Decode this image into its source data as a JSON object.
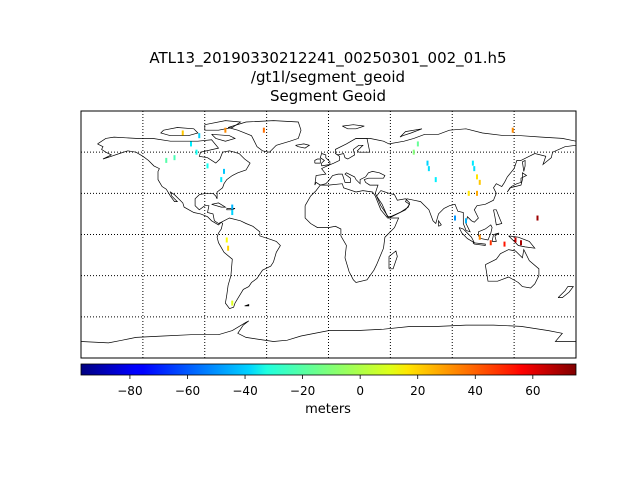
{
  "title_lines": [
    "ATL13_20190330212241_00250301_002_01.h5",
    "/gt1l/segment_geoid",
    "Segment Geoid"
  ],
  "map": {
    "projection": "equirectangular",
    "lon_range": [
      -180,
      180
    ],
    "lat_range": [
      -90,
      90
    ],
    "meridians": [
      -135,
      -90,
      -45,
      0,
      45,
      90,
      135
    ],
    "parallels": [
      -60,
      -30,
      0,
      30,
      60
    ],
    "graticule_style": "dotted",
    "coastline_color": "#000000"
  },
  "colorbar": {
    "colormap": "jet",
    "vmin": -97,
    "vmax": 75,
    "ticks": [
      -80,
      -60,
      -40,
      -20,
      0,
      20,
      40,
      60
    ],
    "tick_labels": [
      "−80",
      "−60",
      "−40",
      "−20",
      "0",
      "20",
      "40",
      "60"
    ],
    "label": "meters"
  },
  "chart_data": {
    "type": "scatter",
    "title": "ATL13_20190330212241_00250301_002_01.h5\n/gt1l/segment_geoid\nSegment Geoid",
    "colorbar_label": "meters",
    "clim": [
      -97,
      75
    ],
    "points": [
      {
        "lon": -106,
        "lat": 74,
        "value": 20
      },
      {
        "lon": -94,
        "lat": 72,
        "value": -40
      },
      {
        "lon": -100,
        "lat": 66,
        "value": -35
      },
      {
        "lon": -96,
        "lat": 60,
        "value": -30
      },
      {
        "lon": -112,
        "lat": 56,
        "value": -20
      },
      {
        "lon": -118,
        "lat": 54,
        "value": -18
      },
      {
        "lon": -88,
        "lat": 50,
        "value": -30
      },
      {
        "lon": -75,
        "lat": 76,
        "value": 30
      },
      {
        "lon": -76,
        "lat": 46,
        "value": -42
      },
      {
        "lon": -78,
        "lat": 40,
        "value": -36
      },
      {
        "lon": -70,
        "lat": 20,
        "value": -45
      },
      {
        "lon": -70,
        "lat": 16,
        "value": -40
      },
      {
        "lon": -74,
        "lat": -4,
        "value": 10
      },
      {
        "lon": -73,
        "lat": -10,
        "value": 18
      },
      {
        "lon": -70,
        "lat": -50,
        "value": 5
      },
      {
        "lon": -47,
        "lat": 76,
        "value": 35
      },
      {
        "lon": 65,
        "lat": 66,
        "value": -15
      },
      {
        "lon": 62,
        "lat": 60,
        "value": -10
      },
      {
        "lon": 72,
        "lat": 52,
        "value": -40
      },
      {
        "lon": 73,
        "lat": 48,
        "value": -38
      },
      {
        "lon": 78,
        "lat": 40,
        "value": -35
      },
      {
        "lon": 105,
        "lat": 52,
        "value": -36
      },
      {
        "lon": 106,
        "lat": 48,
        "value": -38
      },
      {
        "lon": 108,
        "lat": 42,
        "value": 15
      },
      {
        "lon": 110,
        "lat": 38,
        "value": 20
      },
      {
        "lon": 108,
        "lat": 30,
        "value": 25
      },
      {
        "lon": 102,
        "lat": 30,
        "value": 15
      },
      {
        "lon": 134,
        "lat": 76,
        "value": 30
      },
      {
        "lon": 92,
        "lat": 12,
        "value": -50
      },
      {
        "lon": 100,
        "lat": 10,
        "value": -45
      },
      {
        "lon": 110,
        "lat": -2,
        "value": 30
      },
      {
        "lon": 118,
        "lat": -6,
        "value": 45
      },
      {
        "lon": 128,
        "lat": -7,
        "value": 50
      },
      {
        "lon": 136,
        "lat": -4,
        "value": 62
      },
      {
        "lon": 140,
        "lat": -6,
        "value": 68
      },
      {
        "lon": 152,
        "lat": 12,
        "value": 70
      }
    ]
  }
}
